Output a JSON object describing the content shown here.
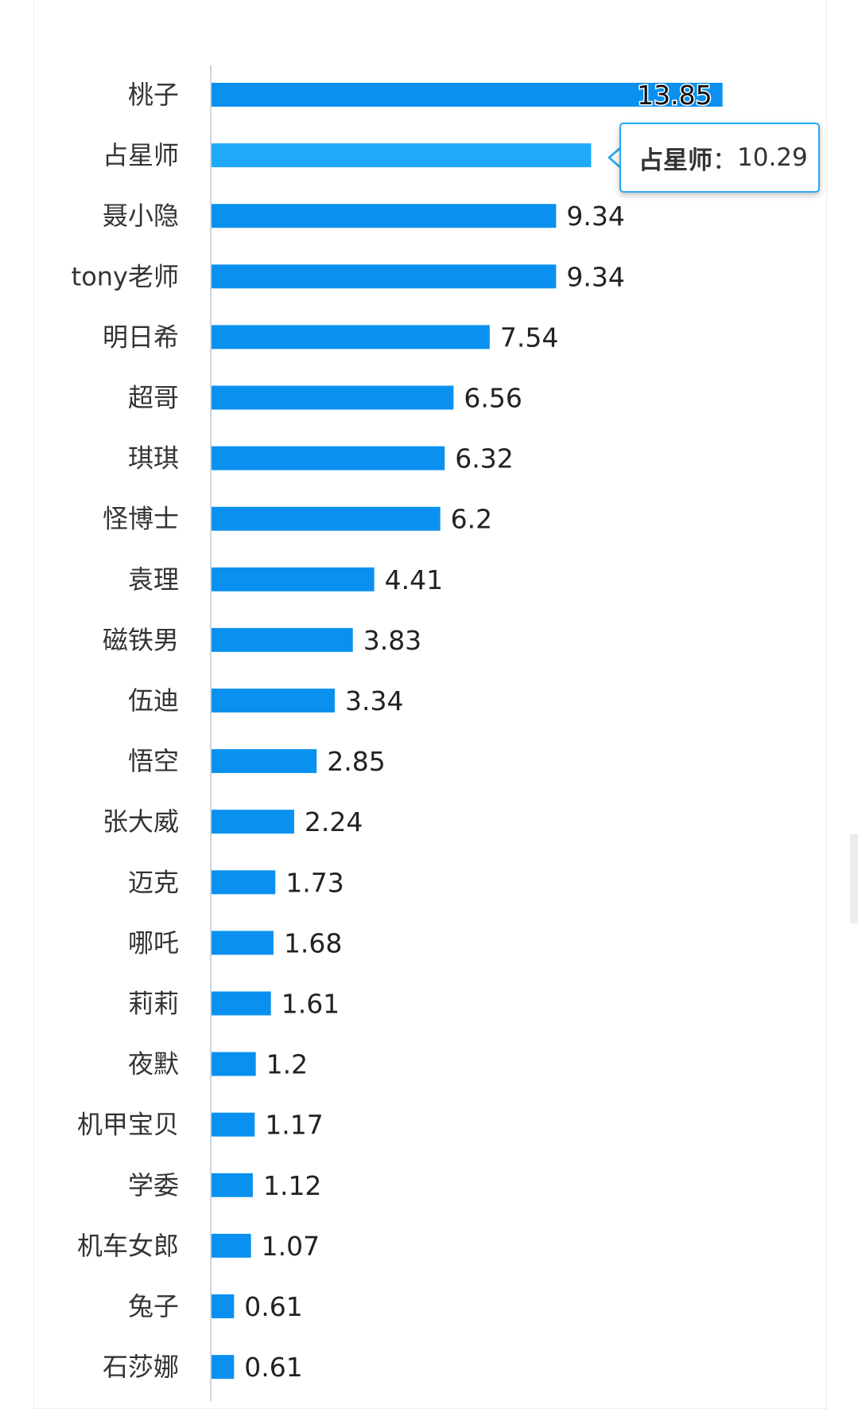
{
  "chart_data": {
    "type": "bar",
    "orientation": "horizontal",
    "categories": [
      "桃子",
      "占星师",
      "聂小隐",
      "tony老师",
      "明日希",
      "超哥",
      "琪琪",
      "怪博士",
      "袁理",
      "磁铁男",
      "伍迪",
      "悟空",
      "张大威",
      "迈克",
      "哪吒",
      "莉莉",
      "夜默",
      "机甲宝贝",
      "学委",
      "机车女郎",
      "兔子",
      "石莎娜"
    ],
    "values": [
      13.85,
      10.29,
      9.34,
      9.34,
      7.54,
      6.56,
      6.32,
      6.2,
      4.41,
      3.83,
      3.34,
      2.85,
      2.24,
      1.73,
      1.68,
      1.61,
      1.2,
      1.17,
      1.12,
      1.07,
      0.61,
      0.61
    ],
    "value_labels": [
      "13.85",
      "",
      "9.34",
      "9.34",
      "7.54",
      "6.56",
      "6.32",
      "6.2",
      "4.41",
      "3.83",
      "3.34",
      "2.85",
      "2.24",
      "1.73",
      "1.68",
      "1.61",
      "1.2",
      "1.17",
      "1.12",
      "1.07",
      "0.61",
      "0.61"
    ],
    "xlim": [
      0,
      14
    ],
    "grid": false,
    "legend": "none",
    "bar_color": "#0a91f0",
    "highlight_color": "#1fa9f6",
    "highlight_index": 1
  },
  "tooltip": {
    "name": "占星师",
    "separator": "：",
    "value": "10.29"
  }
}
